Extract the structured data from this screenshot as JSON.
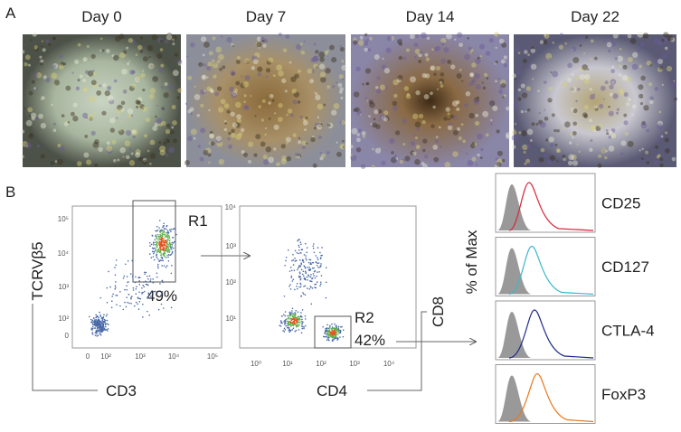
{
  "panel_a": {
    "label": "A",
    "images": [
      {
        "title": "Day 0"
      },
      {
        "title": "Day 7"
      },
      {
        "title": "Day 14"
      },
      {
        "title": "Day 22"
      }
    ]
  },
  "panel_b": {
    "label": "B",
    "plot1": {
      "y_label": "TCRVβ5",
      "x_label": "CD3",
      "gate": "R1",
      "percent": "49%",
      "x_ticks": [
        "0",
        "10²",
        "10³",
        "10⁴",
        "10⁵"
      ],
      "y_ticks": [
        "10⁵",
        "10⁴",
        "10³",
        "10²",
        "0"
      ]
    },
    "plot2": {
      "y_label": "CD8",
      "x_label": "CD4",
      "gate": "R2",
      "percent": "42%",
      "x_ticks": [
        "10⁰",
        "10¹",
        "10²",
        "10³",
        "10⁴"
      ],
      "y_ticks": [
        "10⁴",
        "10³",
        "10²",
        "10¹"
      ]
    },
    "histograms": {
      "y_label": "% of Max",
      "markers": [
        {
          "name": "CD25"
        },
        {
          "name": "CD127"
        },
        {
          "name": "CTLA-4"
        },
        {
          "name": "FoxP3"
        }
      ]
    }
  }
}
